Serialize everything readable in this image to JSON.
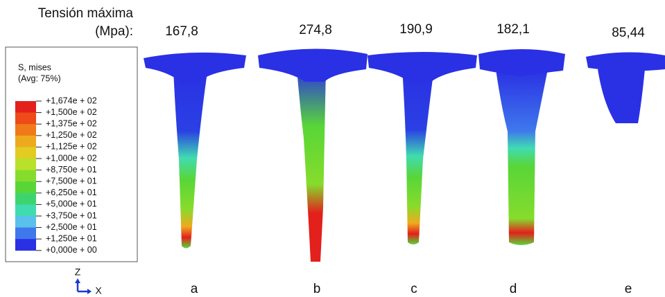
{
  "header": {
    "title": "Tensión máxima",
    "unit": "(Mpa):"
  },
  "panels": [
    {
      "label": "a",
      "max_stress": "167,8"
    },
    {
      "label": "b",
      "max_stress": "274,8"
    },
    {
      "label": "c",
      "max_stress": "190,9"
    },
    {
      "label": "d",
      "max_stress": "182,1"
    },
    {
      "label": "e",
      "max_stress": "85,44"
    }
  ],
  "legend": {
    "title": "S, mises",
    "subtitle": "(Avg: 75%)",
    "labels": [
      "+1,674e + 02",
      "+1,500e + 02",
      "+1,375e + 02",
      "+1,250e + 02",
      "+1,125e + 02",
      "+1,000e + 02",
      "+8,750e + 01",
      "+7,500e + 01",
      "+6,250e + 01",
      "+5,000e + 01",
      "+3,750e + 01",
      "+2,500e + 01",
      "+1,250e + 01",
      "+0,000e + 00"
    ],
    "colors": [
      "#e3201c",
      "#ee4a1a",
      "#f07a1a",
      "#eeaa1e",
      "#e2cc22",
      "#b9e02a",
      "#86dc2c",
      "#58d638",
      "#3dd470",
      "#40dcb0",
      "#5ac0ec",
      "#3f78ec",
      "#2a30e4"
    ]
  },
  "axes": {
    "z": "Z",
    "x": "X"
  }
}
